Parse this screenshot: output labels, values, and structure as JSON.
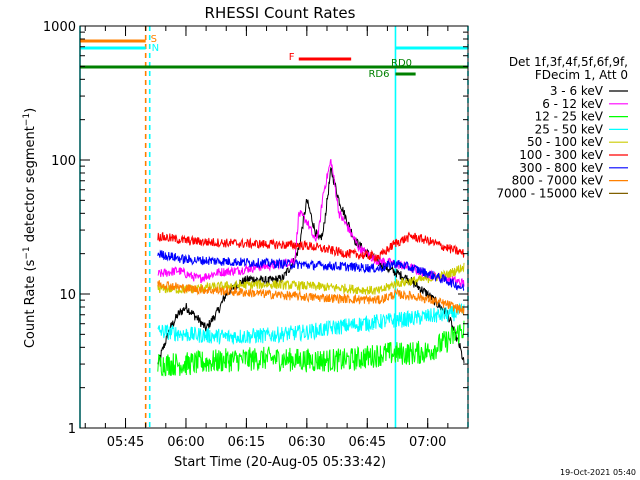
{
  "chart_data": {
    "type": "line",
    "title": "RHESSI Count Rates",
    "xlabel": "Start Time (20-Aug-05 05:33:42)",
    "ylabel": "Count Rate (s⁻¹ detector segment⁻¹)",
    "ylabel_main": "Count Rate (s",
    "ylabel_mid": " detector segment",
    "ylabel_end": ")",
    "ylabel_sup": "−1",
    "y_scale": "log",
    "ylim": [
      1,
      1000
    ],
    "xlim": [
      "05:33:42",
      "07:10:00"
    ],
    "y_ticks": [
      1,
      10,
      100,
      1000
    ],
    "y_tick_labels": [
      "1",
      "10",
      "100",
      "1000"
    ],
    "x_ticks": [
      "05:45",
      "06:00",
      "06:15",
      "06:30",
      "06:45",
      "07:00"
    ],
    "grid": false,
    "legend": {
      "placement": "right",
      "header_line1": "Det 1f,3f,4f,5f,6f,9f,",
      "header_line2": "FDecim 1, Att 0",
      "entries": [
        {
          "label": "3 - 6 keV",
          "color": "#000000"
        },
        {
          "label": "6 - 12 keV",
          "color": "#ff00ff"
        },
        {
          "label": "12 - 25 keV",
          "color": "#00ff00"
        },
        {
          "label": "25 - 50 keV",
          "color": "#00ffff"
        },
        {
          "label": "50 - 100 keV",
          "color": "#cccc00"
        },
        {
          "label": "100 - 300 keV",
          "color": "#ff0000"
        },
        {
          "label": "300 - 800 keV",
          "color": "#0000ff"
        },
        {
          "label": "800 - 7000 keV",
          "color": "#ff8000"
        },
        {
          "label": "7000 - 15000 keV",
          "color": "#806000"
        }
      ]
    },
    "flag_bars": [
      {
        "label": "S",
        "color": "#ff8000",
        "start": "05:33:42",
        "end": "05:50:00"
      },
      {
        "label": "N",
        "color": "#00ffff",
        "start": "05:33:42",
        "end": "05:50:00"
      },
      {
        "label": "N",
        "color": "#00ffff",
        "start": "06:52:00",
        "end": "07:10:00"
      },
      {
        "label": "F",
        "color": "#ff0000",
        "start": "06:28:00",
        "end": "06:41:00"
      },
      {
        "label": "RD0",
        "color": "#008000",
        "start": "05:33:42",
        "end": "07:10:00"
      },
      {
        "label": "RD6",
        "color": "#008000",
        "start": "06:52:00",
        "end": "06:57:00"
      }
    ],
    "vertical_markers": [
      {
        "time": "05:33:42",
        "color": "#00ffff",
        "style": "solid"
      },
      {
        "time": "05:50:00",
        "color": "#ff8000",
        "style": "dashed"
      },
      {
        "time": "05:51:00",
        "color": "#00ffff",
        "style": "dashed"
      },
      {
        "time": "06:52:00",
        "color": "#00ffff",
        "style": "solid"
      },
      {
        "time": "07:10:00",
        "color": "#00ffff",
        "style": "dashed"
      }
    ],
    "series": [
      {
        "name": "3 - 6 keV",
        "color": "#000000",
        "x": [
          "05:53",
          "05:56",
          "05:58",
          "06:00",
          "06:03",
          "06:05",
          "06:08",
          "06:10",
          "06:13",
          "06:16",
          "06:20",
          "06:24",
          "06:27",
          "06:28",
          "06:30",
          "06:32",
          "06:33",
          "06:34",
          "06:36",
          "06:38",
          "06:40",
          "06:42",
          "06:45",
          "06:48",
          "06:51",
          "06:55",
          "07:00",
          "07:05",
          "07:08",
          "07:09"
        ],
        "y": [
          3.0,
          5.5,
          7.0,
          8.0,
          6.5,
          5.5,
          7.5,
          10,
          12,
          13,
          12.5,
          13,
          18,
          22,
          50,
          30,
          25,
          28,
          85,
          50,
          35,
          25,
          20,
          17,
          15,
          13,
          10,
          7,
          4,
          3
        ]
      },
      {
        "name": "6 - 12 keV",
        "color": "#ff00ff",
        "x": [
          "05:53",
          "05:58",
          "06:03",
          "06:08",
          "06:13",
          "06:18",
          "06:23",
          "06:27",
          "06:28",
          "06:30",
          "06:32",
          "06:33",
          "06:34",
          "06:36",
          "06:38",
          "06:40",
          "06:43",
          "06:47",
          "06:51",
          "06:55",
          "07:00",
          "07:05",
          "07:09"
        ],
        "y": [
          14,
          15,
          13,
          14.5,
          15,
          16,
          16.5,
          18,
          40,
          35,
          25,
          30,
          55,
          100,
          40,
          32,
          22,
          18,
          17,
          16,
          14,
          13,
          12
        ]
      },
      {
        "name": "12 - 25 keV",
        "color": "#00ff00",
        "x": [
          "05:53",
          "06:00",
          "06:10",
          "06:20",
          "06:30",
          "06:40",
          "06:50",
          "06:55",
          "07:00",
          "07:05",
          "07:09"
        ],
        "y": [
          3.0,
          3.0,
          3.2,
          3.3,
          3.2,
          3.2,
          3.6,
          3.6,
          3.7,
          4.5,
          5.5
        ]
      },
      {
        "name": "25 - 50 keV",
        "color": "#00ffff",
        "x": [
          "05:53",
          "06:00",
          "06:10",
          "06:20",
          "06:30",
          "06:40",
          "06:50",
          "06:55",
          "07:00",
          "07:05",
          "07:09"
        ],
        "y": [
          5.3,
          5.0,
          4.8,
          4.9,
          5.2,
          5.8,
          6.3,
          6.5,
          6.8,
          7.0,
          7.5
        ]
      },
      {
        "name": "50 - 100 keV",
        "color": "#cccc00",
        "x": [
          "05:53",
          "06:00",
          "06:10",
          "06:20",
          "06:30",
          "06:40",
          "06:48",
          "06:52",
          "07:00",
          "07:05",
          "07:09"
        ],
        "y": [
          11,
          10.8,
          11.5,
          11.8,
          11.5,
          11,
          10.5,
          12,
          13,
          14,
          16
        ]
      },
      {
        "name": "100 - 300 keV",
        "color": "#ff0000",
        "x": [
          "05:53",
          "06:00",
          "06:10",
          "06:20",
          "06:30",
          "06:40",
          "06:48",
          "06:52",
          "06:56",
          "07:00",
          "07:05",
          "07:09"
        ],
        "y": [
          27,
          25,
          24,
          23.5,
          23,
          20,
          19,
          24,
          27,
          25,
          22,
          20
        ]
      },
      {
        "name": "300 - 800 keV",
        "color": "#0000ff",
        "x": [
          "05:53",
          "06:00",
          "06:10",
          "06:20",
          "06:30",
          "06:40",
          "06:48",
          "06:52",
          "06:58",
          "07:05",
          "07:09"
        ],
        "y": [
          20,
          18,
          17.5,
          17,
          16.5,
          16,
          15.5,
          17,
          15,
          12.5,
          11
        ]
      },
      {
        "name": "800 - 7000 keV",
        "color": "#ff8000",
        "x": [
          "05:53",
          "06:00",
          "06:10",
          "06:20",
          "06:30",
          "06:40",
          "06:48",
          "06:52",
          "06:58",
          "07:05",
          "07:09"
        ],
        "y": [
          12,
          11,
          10.5,
          10,
          9.5,
          9.2,
          9.0,
          10,
          9.5,
          8.3,
          7.5
        ]
      }
    ]
  },
  "footer": {
    "timestamp": "19-Oct-2021 05:40"
  }
}
